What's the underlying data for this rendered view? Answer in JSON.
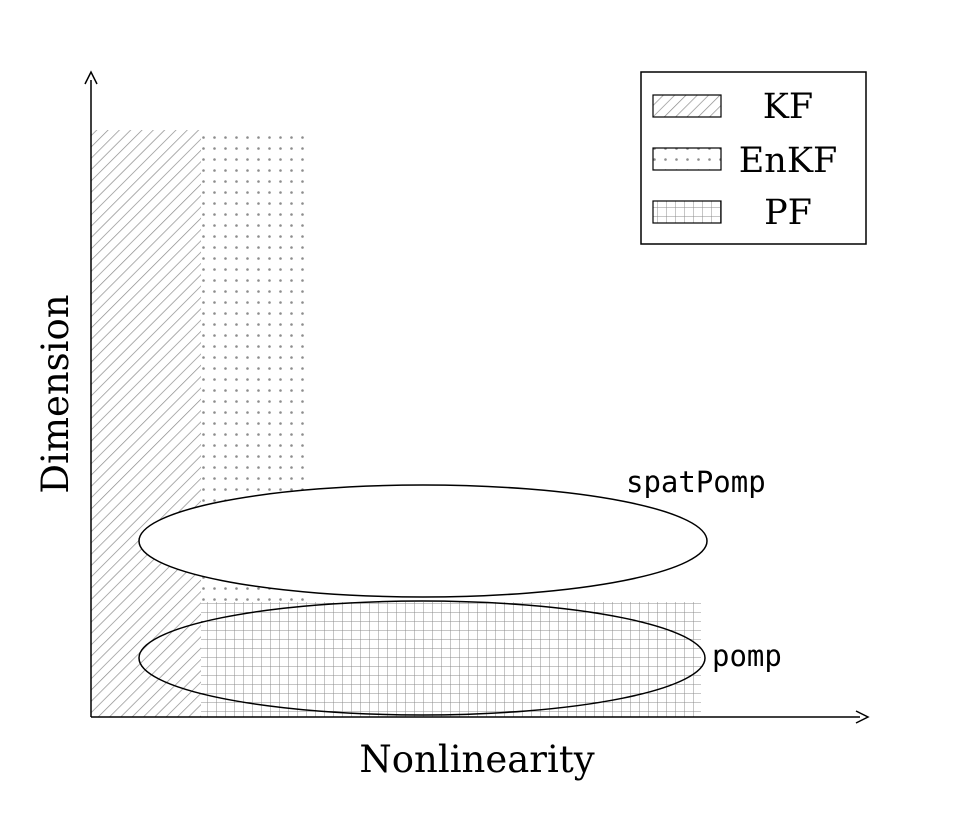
{
  "axes": {
    "x_label": "Nonlinearity",
    "y_label": "Dimension"
  },
  "legend": {
    "placement": "top-right",
    "entries": [
      {
        "label": "KF",
        "pattern": "diagonal-hatch"
      },
      {
        "label": "EnKF",
        "pattern": "dots"
      },
      {
        "label": "PF",
        "pattern": "grid"
      }
    ]
  },
  "ellipse_labels": {
    "upper": "spatPomp",
    "lower": "pomp"
  },
  "colors": {
    "pattern": "#8c8c8c",
    "stroke": "#000000"
  }
}
